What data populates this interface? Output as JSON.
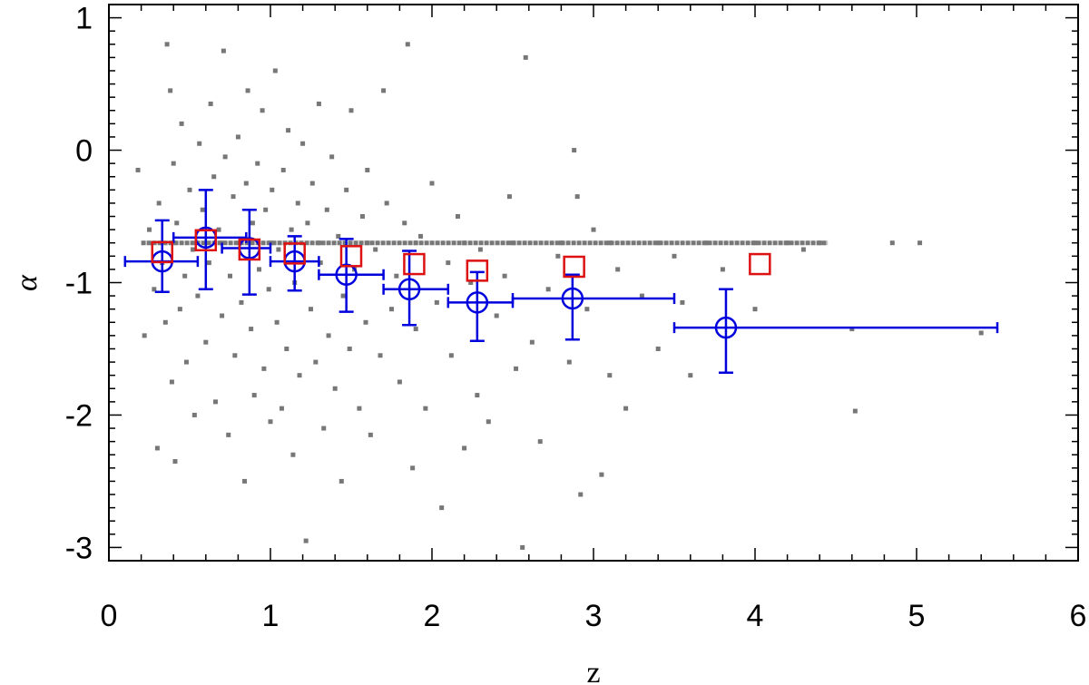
{
  "chart_data": {
    "type": "scatter",
    "title": "",
    "xlabel": "z",
    "ylabel": "α",
    "xlim": [
      0,
      6
    ],
    "ylim": [
      -3.1,
      1.1
    ],
    "xticks": [
      0,
      1,
      2,
      3,
      4,
      5,
      6
    ],
    "xtick_labels": [
      "0",
      "1",
      "2",
      "3",
      "4",
      "5",
      "6"
    ],
    "yticks": [
      -3,
      -2,
      -1,
      0,
      1
    ],
    "ytick_labels": [
      "-3",
      "-2",
      "-1",
      "0",
      "1"
    ],
    "grid": false,
    "legend": "none",
    "colors": {
      "scatter": "#777777",
      "binned": "#0000dd",
      "squares": "#dd1111",
      "axis": "#000000"
    },
    "series": [
      {
        "marker": "filled-square-small",
        "points": [
          [
            0.18,
            -0.15
          ],
          [
            0.22,
            -1.4
          ],
          [
            0.25,
            -0.6
          ],
          [
            0.28,
            -1.05
          ],
          [
            0.3,
            -2.25
          ],
          [
            0.31,
            -0.4
          ],
          [
            0.33,
            -0.85
          ],
          [
            0.35,
            -1.3
          ],
          [
            0.36,
            0.8
          ],
          [
            0.38,
            0.45
          ],
          [
            0.39,
            -1.75
          ],
          [
            0.4,
            -0.1
          ],
          [
            0.41,
            -2.35
          ],
          [
            0.42,
            -0.55
          ],
          [
            0.44,
            -1.2
          ],
          [
            0.45,
            0.2
          ],
          [
            0.47,
            -0.95
          ],
          [
            0.48,
            -1.6
          ],
          [
            0.5,
            -0.3
          ],
          [
            0.52,
            -0.75
          ],
          [
            0.53,
            -2.0
          ],
          [
            0.55,
            -1.1
          ],
          [
            0.56,
            0.05
          ],
          [
            0.58,
            -0.45
          ],
          [
            0.6,
            -1.45
          ],
          [
            0.62,
            -0.85
          ],
          [
            0.63,
            0.35
          ],
          [
            0.65,
            -0.2
          ],
          [
            0.66,
            -1.9
          ],
          [
            0.68,
            -0.6
          ],
          [
            0.7,
            -1.25
          ],
          [
            0.71,
            0.75
          ],
          [
            0.72,
            -0.05
          ],
          [
            0.74,
            -2.15
          ],
          [
            0.75,
            -0.95
          ],
          [
            0.77,
            -0.35
          ],
          [
            0.78,
            -1.55
          ],
          [
            0.8,
            0.1
          ],
          [
            0.81,
            -0.7
          ],
          [
            0.82,
            -1.15
          ],
          [
            0.84,
            -2.5
          ],
          [
            0.85,
            -0.25
          ],
          [
            0.86,
            0.45
          ],
          [
            0.88,
            -1.35
          ],
          [
            0.89,
            -0.55
          ],
          [
            0.9,
            -1.85
          ],
          [
            0.92,
            -0.1
          ],
          [
            0.93,
            -0.9
          ],
          [
            0.95,
            0.3
          ],
          [
            0.96,
            -1.65
          ],
          [
            0.97,
            -0.45
          ],
          [
            0.99,
            -1.05
          ],
          [
            1.0,
            -2.05
          ],
          [
            1.01,
            -0.3
          ],
          [
            1.03,
            0.6
          ],
          [
            1.04,
            -1.3
          ],
          [
            1.05,
            -0.75
          ],
          [
            1.07,
            -1.95
          ],
          [
            1.08,
            -0.15
          ],
          [
            1.1,
            -1.5
          ],
          [
            1.11,
            0.15
          ],
          [
            1.13,
            -0.6
          ],
          [
            1.14,
            -2.3
          ],
          [
            1.15,
            -1.0
          ],
          [
            1.17,
            -0.4
          ],
          [
            1.18,
            -1.7
          ],
          [
            1.2,
            0.05
          ],
          [
            1.22,
            -2.95
          ],
          [
            1.23,
            -0.55
          ],
          [
            1.25,
            -1.2
          ],
          [
            1.26,
            -0.25
          ],
          [
            1.28,
            -1.6
          ],
          [
            1.3,
            0.35
          ],
          [
            1.31,
            -0.85
          ],
          [
            1.33,
            -2.1
          ],
          [
            1.35,
            -0.45
          ],
          [
            1.36,
            -1.4
          ],
          [
            1.38,
            -0.05
          ],
          [
            1.4,
            -1.8
          ],
          [
            1.42,
            -0.65
          ],
          [
            1.44,
            -2.5
          ],
          [
            1.45,
            -1.1
          ],
          [
            1.47,
            -0.3
          ],
          [
            1.49,
            -1.5
          ],
          [
            1.5,
            0.3
          ],
          [
            1.52,
            -0.9
          ],
          [
            1.55,
            -1.95
          ],
          [
            1.57,
            -0.5
          ],
          [
            1.59,
            -1.3
          ],
          [
            1.6,
            -0.15
          ],
          [
            1.62,
            -2.15
          ],
          [
            1.65,
            -0.75
          ],
          [
            1.68,
            -1.55
          ],
          [
            1.7,
            0.45
          ],
          [
            1.72,
            -0.4
          ],
          [
            1.75,
            -1.2
          ],
          [
            1.78,
            -0.95
          ],
          [
            1.8,
            -1.75
          ],
          [
            1.83,
            -0.55
          ],
          [
            1.85,
            0.8
          ],
          [
            1.88,
            -2.4
          ],
          [
            1.9,
            -1.35
          ],
          [
            1.93,
            -0.65
          ],
          [
            1.96,
            -1.95
          ],
          [
            2.0,
            -0.25
          ],
          [
            2.03,
            -1.15
          ],
          [
            2.06,
            -2.7
          ],
          [
            2.1,
            -0.85
          ],
          [
            2.12,
            -1.55
          ],
          [
            2.16,
            -0.5
          ],
          [
            2.2,
            -2.25
          ],
          [
            2.24,
            -1.0
          ],
          [
            2.28,
            -1.85
          ],
          [
            2.3,
            -0.75
          ],
          [
            2.35,
            -2.05
          ],
          [
            2.4,
            -1.25
          ],
          [
            2.45,
            -0.95
          ],
          [
            2.48,
            -0.35
          ],
          [
            2.52,
            -1.65
          ],
          [
            2.56,
            -3.0
          ],
          [
            2.58,
            0.7
          ],
          [
            2.62,
            -1.45
          ],
          [
            2.67,
            -2.2
          ],
          [
            2.72,
            -1.05
          ],
          [
            2.78,
            -0.8
          ],
          [
            2.85,
            -1.6
          ],
          [
            2.88,
            0.0
          ],
          [
            2.9,
            -0.35
          ],
          [
            2.92,
            -2.6
          ],
          [
            2.96,
            -1.2
          ],
          [
            3.0,
            -0.6
          ],
          [
            3.05,
            -2.45
          ],
          [
            3.1,
            -1.7
          ],
          [
            3.15,
            -0.9
          ],
          [
            3.2,
            -1.95
          ],
          [
            3.3,
            -1.1
          ],
          [
            3.4,
            -1.5
          ],
          [
            3.5,
            -0.8
          ],
          [
            3.55,
            -1.15
          ],
          [
            3.6,
            -1.7
          ],
          [
            3.8,
            -0.9
          ],
          [
            4.0,
            -1.2
          ],
          [
            4.3,
            -0.75
          ],
          [
            4.6,
            -1.35
          ],
          [
            4.62,
            -1.97
          ],
          [
            5.4,
            -1.38
          ],
          [
            0.4,
            -0.7
          ],
          [
            0.7,
            -0.7
          ],
          [
            1.0,
            -0.7
          ],
          [
            1.3,
            -0.7
          ],
          [
            1.6,
            -0.7
          ],
          [
            1.9,
            -0.7
          ],
          [
            2.2,
            -0.7
          ],
          [
            2.5,
            -0.7
          ],
          [
            2.8,
            -0.7
          ],
          [
            3.1,
            -0.7
          ],
          [
            3.4,
            -0.7
          ],
          [
            3.7,
            -0.7
          ],
          [
            4.0,
            -0.7
          ],
          [
            4.2,
            -0.7
          ],
          [
            4.4,
            -0.7
          ],
          [
            4.85,
            -0.7
          ],
          [
            5.02,
            -0.7
          ]
        ]
      },
      {
        "marker": "open-circle-errorbar",
        "points": [
          {
            "x": 0.33,
            "y": -0.84,
            "xlo": 0.1,
            "xhi": 0.55,
            "ylo": -1.07,
            "yhi": -0.53
          },
          {
            "x": 0.6,
            "y": -0.66,
            "xlo": 0.4,
            "xhi": 0.85,
            "ylo": -1.05,
            "yhi": -0.3
          },
          {
            "x": 0.87,
            "y": -0.74,
            "xlo": 0.7,
            "xhi": 1.0,
            "ylo": -1.09,
            "yhi": -0.45
          },
          {
            "x": 1.15,
            "y": -0.84,
            "xlo": 1.0,
            "xhi": 1.3,
            "ylo": -1.06,
            "yhi": -0.65
          },
          {
            "x": 1.47,
            "y": -0.94,
            "xlo": 1.3,
            "xhi": 1.7,
            "ylo": -1.22,
            "yhi": -0.67
          },
          {
            "x": 1.86,
            "y": -1.05,
            "xlo": 1.7,
            "xhi": 2.1,
            "ylo": -1.32,
            "yhi": -0.76
          },
          {
            "x": 2.28,
            "y": -1.15,
            "xlo": 2.1,
            "xhi": 2.5,
            "ylo": -1.44,
            "yhi": -0.92
          },
          {
            "x": 2.87,
            "y": -1.12,
            "xlo": 2.5,
            "xhi": 3.5,
            "ylo": -1.43,
            "yhi": -0.94
          },
          {
            "x": 3.82,
            "y": -1.34,
            "xlo": 3.5,
            "xhi": 5.5,
            "ylo": -1.68,
            "yhi": -1.05
          }
        ]
      },
      {
        "marker": "open-square",
        "points": [
          [
            0.33,
            -0.77
          ],
          [
            0.6,
            -0.68
          ],
          [
            0.87,
            -0.75
          ],
          [
            1.15,
            -0.78
          ],
          [
            1.5,
            -0.8
          ],
          [
            1.89,
            -0.86
          ],
          [
            2.28,
            -0.91
          ],
          [
            2.88,
            -0.88
          ],
          [
            4.03,
            -0.86
          ]
        ]
      }
    ]
  }
}
